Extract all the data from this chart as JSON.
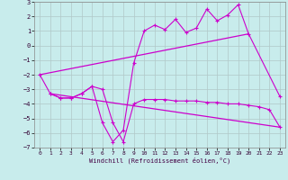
{
  "xlabel": "Windchill (Refroidissement éolien,°C)",
  "background_color": "#c8ecec",
  "grid_color": "#b0c8c8",
  "line_color": "#cc00cc",
  "xlim": [
    -0.5,
    23.5
  ],
  "ylim": [
    -7,
    3
  ],
  "yticks": [
    -7,
    -6,
    -5,
    -4,
    -3,
    -2,
    -1,
    0,
    1,
    2,
    3
  ],
  "xticks": [
    0,
    1,
    2,
    3,
    4,
    5,
    6,
    7,
    8,
    9,
    10,
    11,
    12,
    13,
    14,
    15,
    16,
    17,
    18,
    19,
    20,
    21,
    22,
    23
  ],
  "line1_x": [
    0,
    1,
    2,
    3,
    4,
    5,
    6,
    7,
    8,
    9,
    10,
    11,
    12,
    13,
    14,
    15,
    16,
    17,
    18,
    19,
    20,
    23
  ],
  "line1_y": [
    -2.0,
    -3.3,
    -3.6,
    -3.6,
    -3.3,
    -2.8,
    -5.3,
    -6.6,
    -5.8,
    -1.2,
    1.0,
    1.4,
    1.1,
    1.8,
    0.9,
    1.2,
    2.5,
    1.7,
    2.1,
    2.8,
    0.8,
    -3.5
  ],
  "line2_x": [
    1,
    2,
    3,
    4,
    5,
    6,
    7,
    8,
    9,
    10,
    11,
    12,
    13,
    14,
    15,
    16,
    17,
    18,
    19,
    20,
    21,
    22,
    23
  ],
  "line2_y": [
    -3.3,
    -3.6,
    -3.6,
    -3.3,
    -2.8,
    -3.0,
    -5.3,
    -6.6,
    -4.0,
    -3.7,
    -3.7,
    -3.7,
    -3.8,
    -3.8,
    -3.8,
    -3.9,
    -3.9,
    -4.0,
    -4.0,
    -4.1,
    -4.2,
    -4.4,
    -5.6
  ],
  "line3_x": [
    0,
    20
  ],
  "line3_y": [
    -2.0,
    0.8
  ],
  "line4_x": [
    1,
    23
  ],
  "line4_y": [
    -3.3,
    -5.6
  ]
}
